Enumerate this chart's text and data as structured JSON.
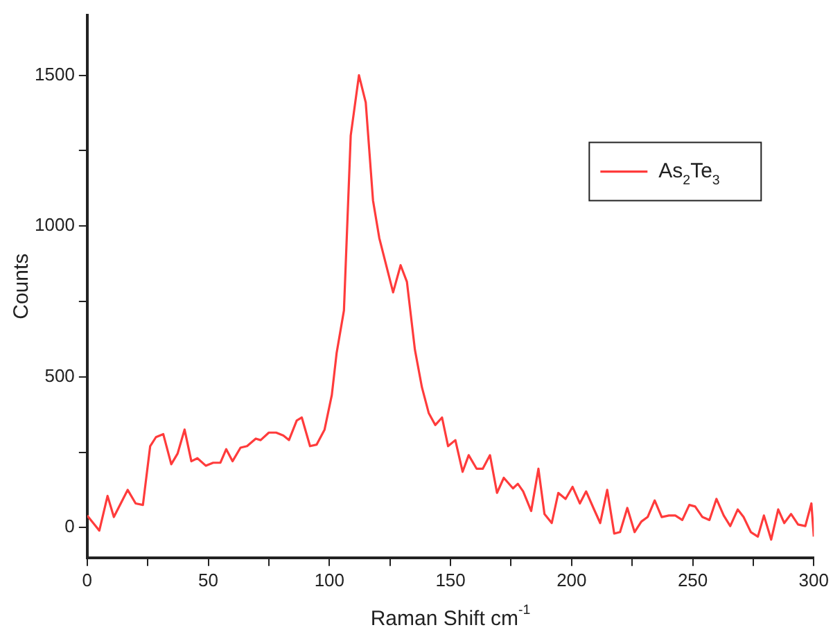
{
  "chart_data": {
    "type": "line",
    "xlabel": "Raman Shift cm$^{-1}$",
    "ylabel": "Counts",
    "x": [
      0,
      5,
      8.4,
      11,
      16.7,
      20,
      23,
      26,
      28.4,
      31.4,
      34.7,
      37.3,
      40.2,
      43,
      45.5,
      49,
      52,
      55,
      57.4,
      60,
      63.3,
      66,
      69.6,
      71.6,
      75,
      78,
      81,
      83.3,
      86.5,
      88.6,
      92,
      94.7,
      98,
      101,
      103,
      106,
      108.8,
      112.2,
      115,
      118,
      120.6,
      126.3,
      129.4,
      132,
      135.3,
      138.2,
      141,
      143.7,
      146.5,
      149,
      152,
      155,
      157.5,
      160.8,
      163.3,
      166.3,
      169.2,
      172,
      175.8,
      177.8,
      180,
      183.3,
      186.3,
      188.8,
      191.8,
      194.5,
      197.5,
      200.4,
      203.4,
      206,
      209,
      211.8,
      214.7,
      217.6,
      220,
      223,
      226,
      228.8,
      231.4,
      234.3,
      237.2,
      240.2,
      242.8,
      245.7,
      248.6,
      251,
      254,
      256.9,
      259.8,
      262.8,
      265.5,
      268.6,
      271,
      274,
      276.9,
      279.4,
      282.4,
      285.3,
      287.8,
      290.6,
      293.5,
      296.5,
      299,
      300
    ],
    "series": [
      {
        "name": "As$_{2}$Te$_{3}$",
        "color": "#ff3b3b",
        "values": [
          40,
          -10,
          105,
          35,
          125,
          80,
          75,
          270,
          300,
          310,
          210,
          245,
          325,
          220,
          230,
          205,
          215,
          215,
          260,
          220,
          265,
          270,
          295,
          290,
          315,
          315,
          305,
          290,
          355,
          365,
          270,
          275,
          325,
          440,
          580,
          720,
          1300,
          1500,
          1410,
          1085,
          960,
          780,
          870,
          815,
          590,
          465,
          380,
          340,
          365,
          270,
          290,
          185,
          240,
          195,
          195,
          240,
          115,
          165,
          130,
          145,
          120,
          55,
          195,
          45,
          15,
          115,
          95,
          135,
          80,
          120,
          65,
          15,
          125,
          -20,
          -15,
          65,
          -15,
          20,
          35,
          90,
          35,
          40,
          40,
          25,
          75,
          70,
          35,
          25,
          95,
          40,
          5,
          60,
          35,
          -15,
          -30,
          40,
          -40,
          60,
          15,
          45,
          10,
          5,
          80,
          -30
        ]
      }
    ],
    "xlim": [
      0,
      300
    ],
    "ylim": [
      -100,
      1700
    ],
    "xticks": [
      0,
      {
        "value": 25,
        "label": null
      },
      50,
      {
        "value": 75,
        "label": null
      },
      100,
      {
        "value": 125,
        "label": null
      },
      150,
      {
        "value": 175,
        "label": null
      },
      200,
      {
        "value": 225,
        "label": null
      },
      250,
      {
        "value": 275,
        "label": null
      },
      300
    ],
    "yticks": [
      0,
      {
        "value": 250,
        "label": null
      },
      500,
      {
        "value": 750,
        "label": null
      },
      1000,
      {
        "value": 1250,
        "label": null
      },
      1500
    ],
    "grid": false,
    "legend": "top right",
    "marker": "none",
    "line_style": "solid"
  }
}
